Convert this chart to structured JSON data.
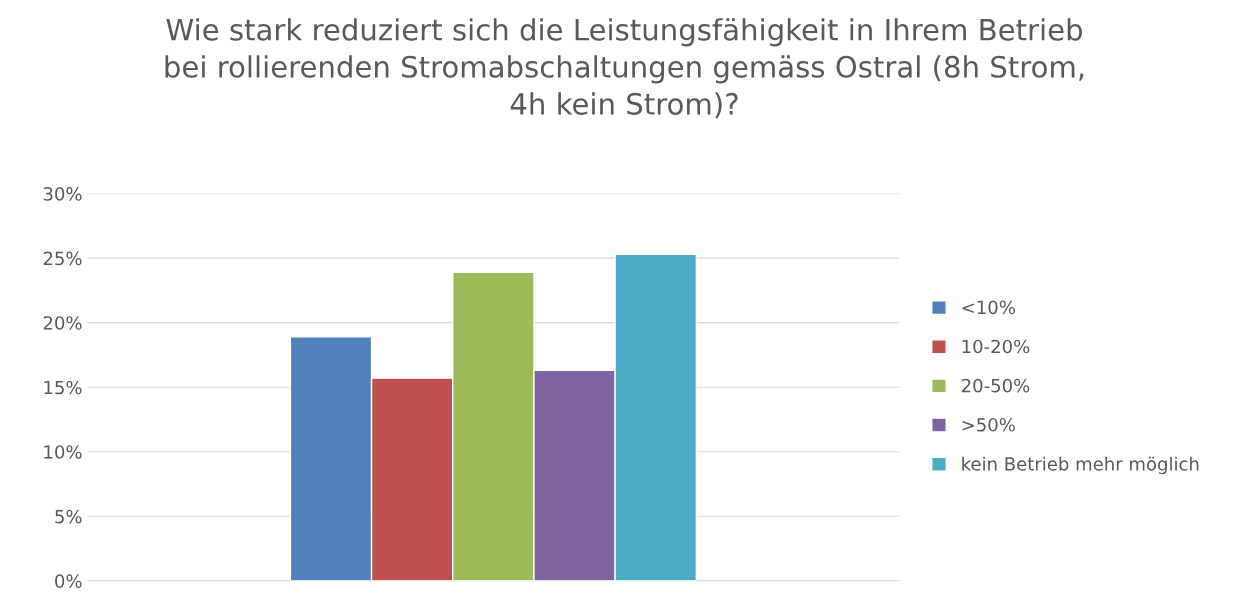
{
  "chart_data": {
    "type": "bar",
    "title": "Wie stark reduziert sich die Leistungsfähigkeit in Ihrem Betrieb\nbei rollierenden Stromabschaltungen gemäss Ostral (8h Strom,\n4h kein Strom)?",
    "categories": [
      null
    ],
    "series": [
      {
        "name": "<10%",
        "color": "#4f81bd",
        "values": [
          18.9
        ]
      },
      {
        "name": "10-20%",
        "color": "#c0504d",
        "values": [
          15.7
        ]
      },
      {
        "name": "20-50%",
        "color": "#9bbb59",
        "values": [
          23.9
        ]
      },
      {
        "name": ">50%",
        "color": "#8064a2",
        "values": [
          16.3
        ]
      },
      {
        "name": "kein Betrieb mehr möglich",
        "color": "#4bacc6",
        "values": [
          25.3
        ]
      }
    ],
    "ylim": [
      0,
      30
    ],
    "yticks": [
      {
        "value": 0,
        "label": "0%"
      },
      {
        "value": 5,
        "label": "5%"
      },
      {
        "value": 10,
        "label": "10%"
      },
      {
        "value": 15,
        "label": "15%"
      },
      {
        "value": 20,
        "label": "20%"
      },
      {
        "value": 25,
        "label": "25%"
      },
      {
        "value": 30,
        "label": "30%"
      }
    ],
    "grid": "y",
    "legend": "right"
  }
}
